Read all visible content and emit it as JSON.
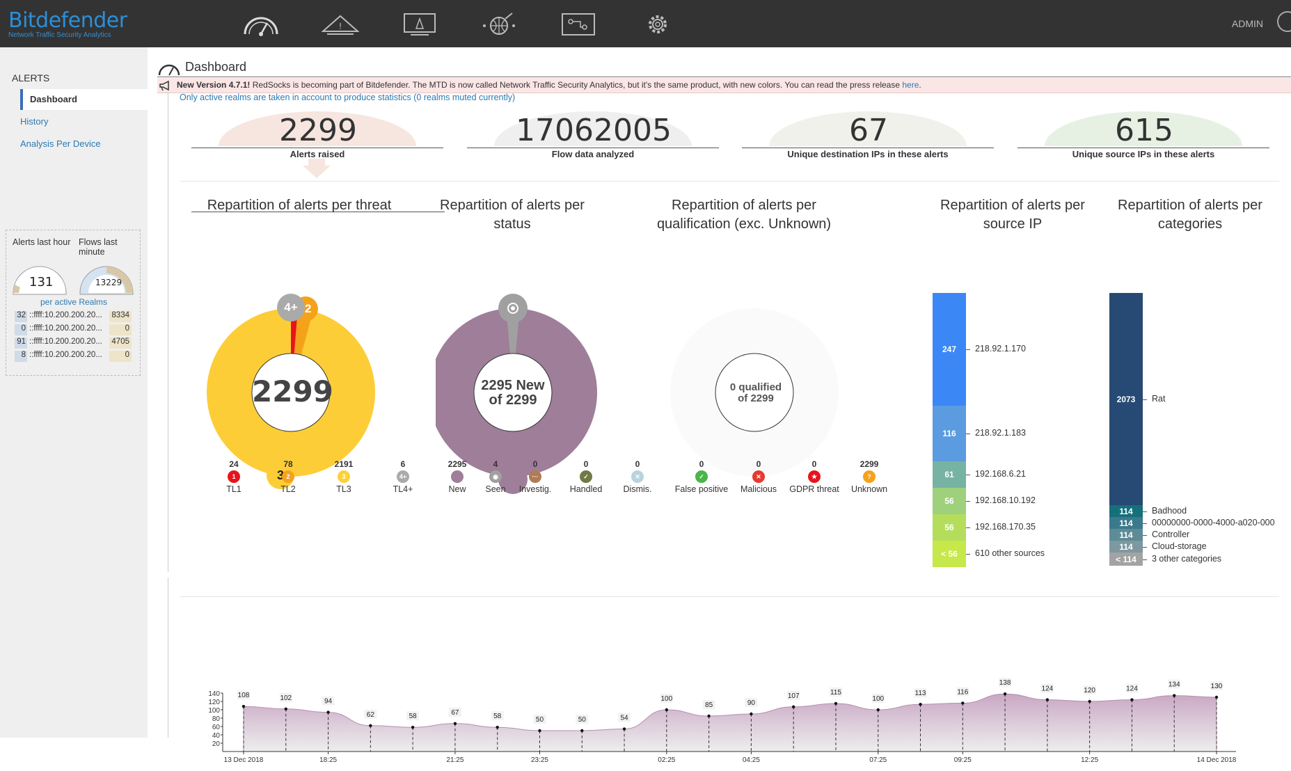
{
  "brand": {
    "name": "Bitdefender",
    "tagline": "Network Traffic Security Analytics"
  },
  "topnav": {
    "icons": [
      "dashboard-gauge-icon",
      "alerts-tent-icon",
      "device-monitor-icon",
      "network-globe-icon",
      "flow-diagram-icon",
      "settings-gear-icon"
    ],
    "user": "ADMIN"
  },
  "sidebar": {
    "section": "ALERTS",
    "items": [
      {
        "label": "Dashboard",
        "active": true
      },
      {
        "label": "History"
      },
      {
        "label": "Analysis Per Device"
      }
    ],
    "mini": {
      "alerts_label": "Alerts last hour",
      "flows_label": "Flows last minute",
      "alerts_value": "131",
      "flows_value": "13229",
      "realms_label": "per active Realms",
      "rows": [
        {
          "a": "32",
          "b": "::ffff:10.200.200.20...",
          "c": "8334"
        },
        {
          "a": "0",
          "b": "::ffff:10.200.200.20...",
          "c": "0"
        },
        {
          "a": "91",
          "b": "::ffff:10.200.200.20...",
          "c": "4705"
        },
        {
          "a": "8",
          "b": "::ffff:10.200.200.20...",
          "c": "0"
        }
      ]
    }
  },
  "page": {
    "title": "Dashboard",
    "banner_bold": "New Version 4.7.1!",
    "banner_text": " RedSocks is becoming part of Bitdefender. The MTD is now called Network Traffic Security Analytics, but it's the same product, with new colors. You can read the press release ",
    "banner_link": "here",
    "banner_end": ".",
    "realms_note": "Only active realms are taken in account to produce statistics (0 realms muted currently)"
  },
  "stats": [
    {
      "value": "2299",
      "label": "Alerts raised",
      "color": "#f6e6df"
    },
    {
      "value": "17062005",
      "label": "Flow data analyzed",
      "color": "#efefef"
    },
    {
      "value": "67",
      "label": "Unique destination IPs in these alerts",
      "color": "#f1f1ec"
    },
    {
      "value": "615",
      "label": "Unique source IPs in these alerts",
      "color": "#e6f1e4"
    }
  ],
  "charts": {
    "threat": {
      "title": "Repartition of alerts per threat",
      "center": "2299",
      "badge_top": "4+",
      "badge_top2": "2",
      "badge_bottom": "3",
      "legend": [
        {
          "count": "24",
          "label": "TL1",
          "symbol": "1",
          "color": "#e8141b"
        },
        {
          "count": "78",
          "label": "TL2",
          "symbol": "2",
          "color": "#f5a21b"
        },
        {
          "count": "2191",
          "label": "TL3",
          "symbol": "3",
          "color": "#fdd137"
        },
        {
          "count": "6",
          "label": "TL4+",
          "symbol": "4+",
          "color": "#aaaaaa"
        }
      ]
    },
    "status": {
      "title": "Repartition of alerts per status",
      "center_line1": "2295 New",
      "center_line2": "of 2299",
      "legend": [
        {
          "count": "2295",
          "label": "New",
          "symbol": "",
          "color": "#9e7e98"
        },
        {
          "count": "4",
          "label": "Seen",
          "symbol": "◉",
          "color": "#a0a0a0"
        },
        {
          "count": "0",
          "label": "Investig.",
          "symbol": "···",
          "color": "#b07c55"
        },
        {
          "count": "0",
          "label": "Handled",
          "symbol": "✓",
          "color": "#6f7a45"
        },
        {
          "count": "0",
          "label": "Dismis.",
          "symbol": "✕",
          "color": "#b9d3de"
        }
      ]
    },
    "qualification": {
      "title": "Repartition of alerts per qualification (exc. Unknown)",
      "center_line1": "0 qualified",
      "center_line2": "of 2299",
      "legend": [
        {
          "count": "0",
          "label": "False positive",
          "symbol": "✓",
          "color": "#4ab548"
        },
        {
          "count": "0",
          "label": "Malicious",
          "symbol": "✕",
          "color": "#e63a2e"
        },
        {
          "count": "0",
          "label": "GDPR threat",
          "symbol": "★",
          "color": "#e8141b"
        },
        {
          "count": "2299",
          "label": "Unknown",
          "symbol": "?",
          "color": "#f5a21b"
        }
      ]
    },
    "source_ip": {
      "title": "Repartition of alerts per source IP",
      "segments": [
        {
          "value": "247",
          "label": "218.92.1.170",
          "color": "#3b87f5"
        },
        {
          "value": "116",
          "label": "218.92.1.183",
          "color": "#5b9be0"
        },
        {
          "value": "61",
          "label": "192.168.6.21",
          "color": "#77b3a2"
        },
        {
          "value": "56",
          "label": "192.168.10.192",
          "color": "#9fd07b"
        },
        {
          "value": "56",
          "label": "192.168.170.35",
          "color": "#b5dd5c"
        },
        {
          "value": "< 56",
          "label": "610 other sources",
          "color": "#c6e84a"
        }
      ]
    },
    "categories": {
      "title": "Repartition of alerts per categories",
      "segments": [
        {
          "value": "2073",
          "label": "Rat",
          "color": "#264a73"
        },
        {
          "value": "114",
          "label": "Badhood",
          "color": "#16707a"
        },
        {
          "value": "114",
          "label": "00000000-0000-4000-a020-000",
          "color": "#3b7a8c"
        },
        {
          "value": "114",
          "label": "Controller",
          "color": "#5d8b96"
        },
        {
          "value": "114",
          "label": "Cloud-storage",
          "color": "#7d98a0"
        },
        {
          "value": "< 114",
          "label": "3 other categories",
          "color": "#a3a3a3"
        }
      ]
    }
  },
  "chart_data": {
    "type": "area",
    "title": "",
    "x": [
      "13 Dec 2018",
      "",
      "18:25",
      "",
      "",
      "21:25",
      "",
      "23:25",
      "",
      "",
      "02:25",
      "",
      "04:25",
      "",
      "",
      "07:25",
      "",
      "09:25",
      "",
      "",
      "12:25",
      "",
      "",
      "14 Dec 2018"
    ],
    "values": [
      108,
      102,
      94,
      62,
      58,
      67,
      58,
      50,
      50,
      54,
      100,
      85,
      90,
      107,
      115,
      100,
      113,
      116,
      138,
      124,
      120,
      124,
      134,
      130
    ],
    "ytick_labels": [
      "140",
      "120",
      "100",
      "80",
      "60",
      "40",
      "20"
    ],
    "ylim": [
      0,
      140
    ],
    "xtick_labels": [
      "13 Dec 2018",
      "18:25",
      "21:25",
      "23:25",
      "02:25",
      "04:25",
      "07:25",
      "09:25",
      "12:25",
      "14 Dec 2018"
    ]
  }
}
